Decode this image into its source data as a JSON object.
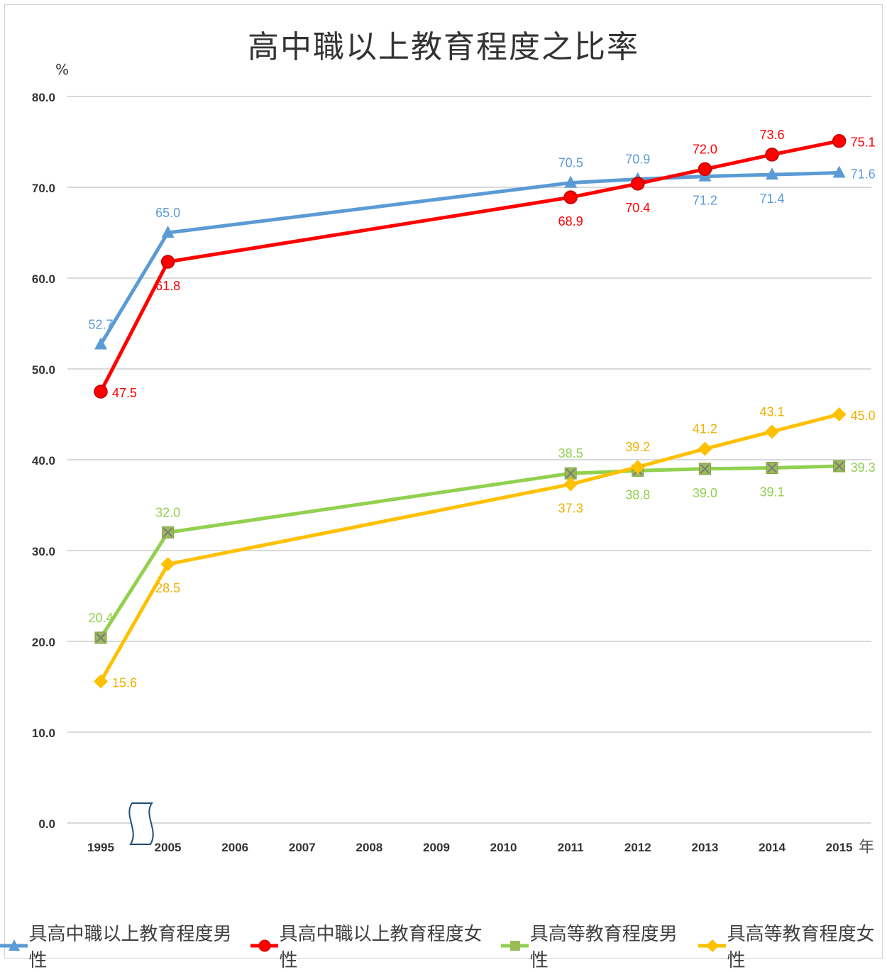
{
  "chart_data": {
    "type": "line",
    "title": "高中職以上教育程度之比率",
    "ylabel": "%",
    "xlabel": "年",
    "categories": [
      "1995",
      "2005",
      "2006",
      "2007",
      "2008",
      "2009",
      "2010",
      "2011",
      "2012",
      "2013",
      "2014",
      "2015"
    ],
    "y_ticks": [
      "0.0",
      "10.0",
      "20.0",
      "30.0",
      "40.0",
      "50.0",
      "60.0",
      "70.0",
      "80.0"
    ],
    "ylim": [
      0,
      80
    ],
    "grid": true,
    "axis_break_after": "1995",
    "legend_position": "bottom",
    "series": [
      {
        "name": "具高中職以上教育程度男性",
        "color": "#5b9bd5",
        "marker": "triangle",
        "values": [
          52.7,
          65.0,
          null,
          null,
          null,
          null,
          null,
          70.5,
          70.9,
          71.2,
          71.4,
          71.6
        ],
        "labels": [
          "52.7",
          "65.0",
          "",
          "",
          "",
          "",
          "",
          "70.5",
          "70.9",
          "71.2",
          "71.4",
          "71.6"
        ],
        "label_pos": [
          "above",
          "above",
          "",
          "",
          "",
          "",
          "",
          "above",
          "above",
          "below",
          "below",
          "right"
        ]
      },
      {
        "name": "具高中職以上教育程度女性",
        "color": "#ff0000",
        "marker": "circle",
        "values": [
          47.5,
          61.8,
          null,
          null,
          null,
          null,
          null,
          68.9,
          70.4,
          72.0,
          73.6,
          75.1
        ],
        "labels": [
          "47.5",
          "61.8",
          "",
          "",
          "",
          "",
          "",
          "68.9",
          "70.4",
          "72.0",
          "73.6",
          "75.1"
        ],
        "label_pos": [
          "right",
          "below",
          "",
          "",
          "",
          "",
          "",
          "below",
          "below",
          "above",
          "above",
          "right"
        ]
      },
      {
        "name": "具高等教育程度男性",
        "color": "#92d050",
        "marker": "square-x",
        "values": [
          20.4,
          32.0,
          null,
          null,
          null,
          null,
          null,
          38.5,
          38.8,
          39.0,
          39.1,
          39.3
        ],
        "labels": [
          "20.4",
          "32.0",
          "",
          "",
          "",
          "",
          "",
          "38.5",
          "38.8",
          "39.0",
          "39.1",
          "39.3"
        ],
        "label_pos": [
          "above",
          "above",
          "",
          "",
          "",
          "",
          "",
          "above",
          "below",
          "below",
          "below",
          "right"
        ]
      },
      {
        "name": "具高等教育程度女性",
        "color": "#ffc000",
        "marker": "diamond",
        "values": [
          15.6,
          28.5,
          null,
          null,
          null,
          null,
          null,
          37.3,
          39.2,
          41.2,
          43.1,
          45.0
        ],
        "labels": [
          "15.6",
          "28.5",
          "",
          "",
          "",
          "",
          "",
          "37.3",
          "39.2",
          "41.2",
          "43.1",
          "45.0"
        ],
        "label_pos": [
          "right",
          "below",
          "",
          "",
          "",
          "",
          "",
          "below",
          "above",
          "above",
          "above",
          "right"
        ]
      }
    ]
  }
}
